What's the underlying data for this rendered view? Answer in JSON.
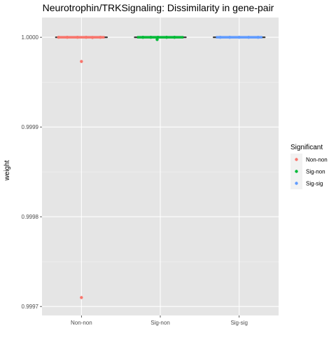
{
  "chart_data": {
    "type": "box_jitter",
    "title": "Neurotrophin/TRKSignaling: Dissimilarity in gene-pair",
    "xlabel": "",
    "ylabel": "weight",
    "categories": [
      "Non-non",
      "Sig-non",
      "Sig-sig"
    ],
    "ylim": [
      0.99969,
      1.000022
    ],
    "yticks": [
      0.9997,
      0.9998,
      0.9999,
      1.0
    ],
    "ytick_labels": [
      "0.9997",
      "0.9998",
      "0.9999",
      "1.0000"
    ],
    "grid": true,
    "background": "#e5e5e5",
    "legend": {
      "title": "Significant",
      "position": "right",
      "entries": [
        {
          "label": "Non-non",
          "color": "#f8766d"
        },
        {
          "label": "Sig-non",
          "color": "#00ba38"
        },
        {
          "label": "Sig-sig",
          "color": "#619cff"
        }
      ]
    },
    "boxes": [
      {
        "category": "Non-non",
        "median": 1.0,
        "q1": 1.0,
        "q3": 1.0,
        "whisker_low": 1.0,
        "whisker_high": 1.0
      },
      {
        "category": "Sig-non",
        "median": 1.0,
        "q1": 1.0,
        "q3": 1.0,
        "whisker_low": 1.0,
        "whisker_high": 1.0
      },
      {
        "category": "Sig-sig",
        "median": 1.0,
        "q1": 1.0,
        "q3": 1.0,
        "whisker_low": 1.0,
        "whisker_high": 1.0
      }
    ],
    "series": [
      {
        "category": "Non-non",
        "color": "#f8766d",
        "points": [
          {
            "jitter": 0.0,
            "y": 0.99971
          },
          {
            "jitter": 0.0,
            "y": 0.999973
          },
          {
            "jitter": -0.29,
            "y": 1.0
          },
          {
            "jitter": -0.18,
            "y": 1.0
          },
          {
            "jitter": -0.05,
            "y": 1.0
          },
          {
            "jitter": 0.06,
            "y": 1.0
          },
          {
            "jitter": 0.14,
            "y": 0.9999998
          },
          {
            "jitter": 0.24,
            "y": 1.0
          }
        ]
      },
      {
        "category": "Sig-non",
        "color": "#00ba38",
        "points": [
          {
            "jitter": -0.22,
            "y": 1.0
          },
          {
            "jitter": -0.12,
            "y": 1.0
          },
          {
            "jitter": -0.03,
            "y": 1.0
          },
          {
            "jitter": -0.04,
            "y": 0.9999975
          },
          {
            "jitter": 0.08,
            "y": 1.0
          },
          {
            "jitter": 0.18,
            "y": 1.0
          }
        ]
      },
      {
        "category": "Sig-sig",
        "color": "#619cff",
        "points": [
          {
            "jitter": -0.24,
            "y": 1.0
          },
          {
            "jitter": -0.12,
            "y": 1.0
          },
          {
            "jitter": 0.0,
            "y": 1.0
          },
          {
            "jitter": 0.12,
            "y": 1.0
          },
          {
            "jitter": 0.24,
            "y": 1.0
          }
        ]
      }
    ]
  }
}
